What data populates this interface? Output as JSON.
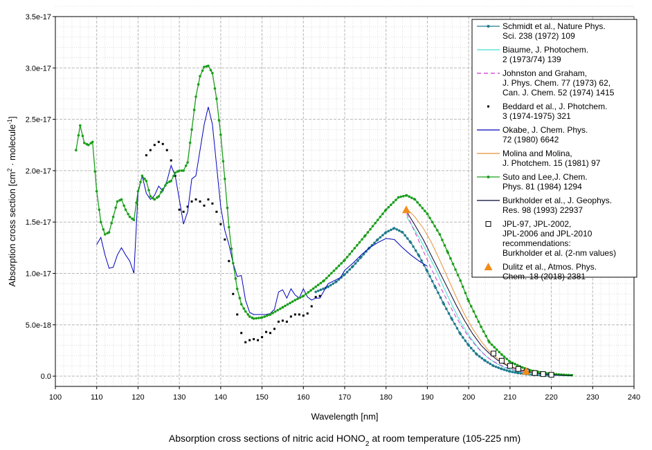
{
  "chart_data": {
    "type": "line",
    "title": "",
    "caption": {
      "prefix": "Absorption cross sections of nitric acid HONO",
      "sub": "2",
      "suffix": " at room temperature (105-225 nm)"
    },
    "xlabel": "Wavelength [nm]",
    "ylabel": {
      "prefix": "Absorption cross section [cm",
      "sup1": "2",
      "middle": " · molecule",
      "sup2": "-1",
      "suffix": "]"
    },
    "xlim": [
      100,
      240
    ],
    "ylim": [
      -1e-18,
      3.5e-17
    ],
    "xticks": [
      "100",
      "110",
      "120",
      "130",
      "140",
      "150",
      "160",
      "170",
      "180",
      "190",
      "200",
      "210",
      "220",
      "230",
      "240"
    ],
    "yticks": [
      {
        "value": 0,
        "label": "0.0"
      },
      {
        "value": 5e-18,
        "label": "5.0e-18"
      },
      {
        "value": 1e-17,
        "label": "1.0e-17"
      },
      {
        "value": 1.5e-17,
        "label": "1.5e-17"
      },
      {
        "value": 2e-17,
        "label": "2.0e-17"
      },
      {
        "value": 2.5e-17,
        "label": "2.5e-17"
      },
      {
        "value": 3e-17,
        "label": "3.0e-17"
      },
      {
        "value": 3.5e-17,
        "label": "3.5e-17"
      }
    ],
    "grid": true,
    "legend_position": "top-right",
    "series": [
      {
        "name": "Schmidt et al., Nature Phys. Sci. 238 (1972) 109",
        "legend": [
          "Schmidt et al., Nature Phys.",
          "Sci. 238 (1972) 109"
        ],
        "color": "#1f7a8c",
        "style": "line-dot",
        "x": [
          163,
          166,
          168,
          170,
          172,
          174,
          176,
          178,
          180,
          182,
          184,
          186,
          188,
          190,
          192,
          194,
          196,
          198,
          200,
          202,
          204,
          206,
          208,
          210,
          212,
          214,
          216,
          218,
          220
        ],
        "y": [
          8.2e-18,
          8.7e-18,
          9.2e-18,
          9.9e-18,
          1.07e-17,
          1.16e-17,
          1.25e-17,
          1.33e-17,
          1.4e-17,
          1.44e-17,
          1.4e-17,
          1.3e-17,
          1.17e-17,
          1.02e-17,
          8.6e-18,
          7e-18,
          5.5e-18,
          4.1e-18,
          3e-18,
          2.1e-18,
          1.5e-18,
          1e-18,
          7e-19,
          4.5e-19,
          3e-19,
          2e-19,
          1.3e-19,
          8e-20,
          5e-20
        ]
      },
      {
        "name": "Biaume, J. Photochem. 2 (1973/74) 139",
        "legend": [
          "Biaume, J. Photochem.",
          "2 (1973/74) 139"
        ],
        "color": "#40e0d0",
        "style": "line",
        "x": [
          185,
          188,
          190,
          192,
          194,
          196,
          198,
          200,
          202,
          204,
          206,
          208,
          210,
          212,
          214,
          216,
          218,
          220,
          222,
          224,
          225
        ],
        "y": [
          1.55e-17,
          1.35e-17,
          1.2e-17,
          1.04e-17,
          8.6e-18,
          6.9e-18,
          5.3e-18,
          4e-18,
          2.9e-18,
          2e-18,
          1.4e-18,
          9.5e-19,
          6.5e-19,
          4.4e-19,
          3e-19,
          2e-19,
          1.3e-19,
          8e-20,
          5e-20,
          3e-20,
          2e-20
        ]
      },
      {
        "name": "Johnston and Graham, J. Phys. Chem. 77 (1973) 62, Can. J. Chem. 52 (1974) 1415",
        "legend": [
          "Johnston and Graham,",
          "J. Phys. Chem. 77 (1973) 62,",
          "Can. J. Chem. 52 (1974) 1415"
        ],
        "color": "#cc33cc",
        "style": "dash",
        "x": [
          185,
          187,
          189,
          191,
          193,
          195,
          197,
          199,
          201,
          203,
          205,
          207,
          209,
          211,
          213,
          215,
          217,
          219,
          221,
          223,
          225
        ],
        "y": [
          1.58e-17,
          1.4e-17,
          1.22e-17,
          1.04e-17,
          8.8e-18,
          7.2e-18,
          5.7e-18,
          4.4e-18,
          3.3e-18,
          2.4e-18,
          1.7e-18,
          1.2e-18,
          8.5e-19,
          6e-19,
          4.2e-19,
          3e-19,
          2.1e-19,
          1.4e-19,
          9e-20,
          6e-20,
          4e-20
        ]
      },
      {
        "name": "Beddard et al., J. Photchem. 3 (1974-1975) 321",
        "legend": [
          "Beddard et al., J. Photchem.",
          "3 (1974-1975) 321"
        ],
        "color": "#000000",
        "style": "dots",
        "x": [
          122,
          123,
          124,
          125,
          126,
          127,
          128,
          129,
          130,
          131,
          132,
          133,
          134,
          135,
          136,
          137,
          138,
          139,
          140,
          141,
          142,
          143,
          144,
          145,
          146,
          147,
          148,
          149,
          150,
          151,
          152,
          153,
          154,
          155,
          156,
          157,
          158,
          159,
          160,
          161,
          162,
          163,
          164
        ],
        "y": [
          2.15e-17,
          2.2e-17,
          2.25e-17,
          2.28e-17,
          2.26e-17,
          2.2e-17,
          2.1e-17,
          1.95e-17,
          1.62e-17,
          1.6e-17,
          1.65e-17,
          1.7e-17,
          1.72e-17,
          1.7e-17,
          1.66e-17,
          1.72e-17,
          1.68e-17,
          1.6e-17,
          1.48e-17,
          1.33e-17,
          1.12e-17,
          8e-18,
          6e-18,
          4.2e-18,
          3.3e-18,
          3.5e-18,
          3.6e-18,
          3.5e-18,
          3.8e-18,
          4.3e-18,
          4.2e-18,
          4.6e-18,
          5.3e-18,
          5.4e-18,
          5.3e-18,
          5.8e-18,
          6e-18,
          6e-18,
          5.9e-18,
          6.1e-18,
          6.8e-18,
          7.7e-18,
          7.8e-18
        ]
      },
      {
        "name": "Okabe, J. Chem. Phys. 72 (1980) 6642",
        "legend": [
          "Okabe, J. Chem. Phys.",
          "72 (1980) 6642"
        ],
        "color": "#0000bb",
        "style": "line",
        "x": [
          110,
          111,
          112,
          113,
          114,
          115,
          116,
          117,
          118,
          119,
          120,
          121,
          122,
          123,
          124,
          125,
          126,
          127,
          128,
          129,
          130,
          131,
          132,
          133,
          134,
          135,
          136,
          137,
          138,
          139,
          140,
          141,
          142,
          143,
          144,
          145,
          146,
          147,
          148,
          149,
          150,
          151,
          152,
          153,
          154,
          155,
          156,
          157,
          158,
          159,
          160,
          161,
          162,
          163,
          164,
          165,
          166,
          167,
          168,
          169,
          170,
          172,
          174,
          176,
          178,
          180,
          182,
          184,
          186,
          188,
          190
        ],
        "y": [
          1.28e-17,
          1.35e-17,
          1.18e-17,
          1.05e-17,
          1.06e-17,
          1.18e-17,
          1.25e-17,
          1.18e-17,
          1.12e-17,
          1e-17,
          1.78e-17,
          1.95e-17,
          1.78e-17,
          1.72e-17,
          1.76e-17,
          1.85e-17,
          1.8e-17,
          1.9e-17,
          2.05e-17,
          1.95e-17,
          1.72e-17,
          1.48e-17,
          1.6e-17,
          1.92e-17,
          1.95e-17,
          2.2e-17,
          2.45e-17,
          2.62e-17,
          2.45e-17,
          2.05e-17,
          1.65e-17,
          1.42e-17,
          1.28e-17,
          1.1e-17,
          9.7e-18,
          9.8e-18,
          7.4e-18,
          6.2e-18,
          6e-18,
          6e-18,
          6e-18,
          6e-18,
          6.1e-18,
          6.5e-18,
          8.2e-18,
          8.4e-18,
          7.6e-18,
          8.5e-18,
          7.9e-18,
          7.6e-18,
          8.5e-18,
          7.7e-18,
          7.4e-18,
          7.6e-18,
          7.6e-18,
          8.3e-18,
          9e-18,
          9.2e-18,
          9.4e-18,
          9.6e-18,
          1.03e-17,
          1.1e-17,
          1.18e-17,
          1.25e-17,
          1.3e-17,
          1.34e-17,
          1.33e-17,
          1.25e-17,
          1.18e-17,
          1.12e-17,
          1.07e-17
        ]
      },
      {
        "name": "Molina and Molina, J. Photchem. 15 (1981) 97",
        "legend": [
          "Molina and Molina,",
          "J. Photchem. 15 (1981) 97"
        ],
        "color": "#e69138",
        "style": "line",
        "x": [
          185,
          187,
          189,
          191,
          193,
          195,
          197,
          199,
          201,
          203,
          205,
          207,
          209,
          211,
          213,
          215,
          217,
          219,
          221,
          223,
          225
        ],
        "y": [
          1.63e-17,
          1.55e-17,
          1.44e-17,
          1.3e-17,
          1.13e-17,
          9.5e-18,
          7.7e-18,
          6e-18,
          4.6e-18,
          3.4e-18,
          2.4e-18,
          1.7e-18,
          1.2e-18,
          8.4e-19,
          5.9e-19,
          4.1e-19,
          2.8e-19,
          1.9e-19,
          1.3e-19,
          8e-20,
          5e-20
        ]
      },
      {
        "name": "Suto and Lee, J. Chem. Phys. 81 (1984) 1294",
        "legend": [
          "Suto and Lee,J. Chem.",
          "Phys. 81 (1984) 1294"
        ],
        "color": "#1a9e1a",
        "style": "line-dot",
        "x": [
          105,
          106,
          107,
          108,
          109,
          110,
          111,
          112,
          113,
          114,
          115,
          116,
          117,
          118,
          119,
          120,
          121,
          122,
          123,
          124,
          125,
          126,
          127,
          128,
          129,
          130,
          131,
          132,
          133,
          134,
          135,
          136,
          137,
          138,
          139,
          140,
          141,
          142,
          143,
          144,
          145,
          146,
          147,
          148,
          150,
          152,
          155,
          158,
          160,
          165,
          170,
          175,
          180,
          183,
          185,
          187,
          190,
          193,
          195,
          198,
          200,
          203,
          205,
          208,
          210,
          213,
          215,
          218,
          220,
          223,
          225
        ],
        "y": [
          2.2e-17,
          2.44e-17,
          2.27e-17,
          2.25e-17,
          2.28e-17,
          1.8e-17,
          1.5e-17,
          1.38e-17,
          1.4e-17,
          1.55e-17,
          1.7e-17,
          1.72e-17,
          1.62e-17,
          1.55e-17,
          1.52e-17,
          1.8e-17,
          1.95e-17,
          1.9e-17,
          1.75e-17,
          1.72e-17,
          1.75e-17,
          1.82e-17,
          1.88e-17,
          1.9e-17,
          1.98e-17,
          2e-17,
          2e-17,
          2.08e-17,
          2.4e-17,
          2.72e-17,
          2.92e-17,
          3.01e-17,
          3.02e-17,
          2.95e-17,
          2.7e-17,
          2.35e-17,
          1.92e-17,
          1.45e-17,
          1.1e-17,
          8.5e-18,
          7e-18,
          6.3e-18,
          5.8e-18,
          5.6e-18,
          5.7e-18,
          6e-18,
          6.7e-18,
          7.4e-18,
          7.8e-18,
          9.3e-18,
          1.13e-17,
          1.37e-17,
          1.62e-17,
          1.74e-17,
          1.76e-17,
          1.72e-17,
          1.58e-17,
          1.38e-17,
          1.2e-17,
          9.3e-18,
          7.3e-18,
          4.8e-18,
          3.3e-18,
          2.1e-18,
          1.4e-18,
          8.5e-19,
          5.5e-19,
          3.3e-19,
          2.2e-19,
          1.3e-19,
          9e-20
        ]
      },
      {
        "name": "Burkholder et al., J. Geophys. Res. 98 (1993) 22937",
        "legend": [
          "Burkholder et al., J. Geophys.",
          "Res. 98 (1993) 22937"
        ],
        "color": "#000033",
        "style": "line",
        "x": [
          185,
          187,
          189,
          191,
          193,
          195,
          197,
          199,
          201,
          203,
          205,
          207,
          209,
          211,
          213,
          215,
          217,
          219,
          221,
          223,
          225
        ],
        "y": [
          1.6e-17,
          1.47e-17,
          1.33e-17,
          1.17e-17,
          1.01e-17,
          8.5e-18,
          6.9e-18,
          5.4e-18,
          4.1e-18,
          3e-18,
          2.2e-18,
          1.55e-18,
          1.1e-18,
          7.6e-19,
          5.3e-19,
          3.6e-19,
          2.5e-19,
          1.7e-19,
          1.1e-19,
          7e-20,
          5e-20
        ]
      },
      {
        "name": "JPL-97, JPL-2002, JPL-2006 and JPL-2010 recommendations: Burkholder et al. (2-nm values)",
        "legend": [
          "JPL-97, JPL-2002,",
          "JPL-2006 and JPL-2010",
          "recommendations:",
          "Burkholder et al. (2-nm values)"
        ],
        "color": "#000000",
        "style": "squares",
        "x": [
          206,
          208,
          210,
          212,
          214,
          216,
          218,
          220
        ],
        "y": [
          2.2e-18,
          1.5e-18,
          1e-18,
          7e-19,
          4.5e-19,
          3e-19,
          2e-19,
          1.3e-19
        ]
      },
      {
        "name": "Dulitz et al., Atmos. Phys. Chem. 18 (2018) 2381",
        "legend": [
          "Dulitz et al., Atmos. Phys.",
          "Chem. 18 (2018) 2381"
        ],
        "color": "#f28c1a",
        "style": "triangles",
        "x": [
          184.9,
          213.9
        ],
        "y": [
          1.62e-17,
          4.7e-19
        ]
      }
    ]
  }
}
